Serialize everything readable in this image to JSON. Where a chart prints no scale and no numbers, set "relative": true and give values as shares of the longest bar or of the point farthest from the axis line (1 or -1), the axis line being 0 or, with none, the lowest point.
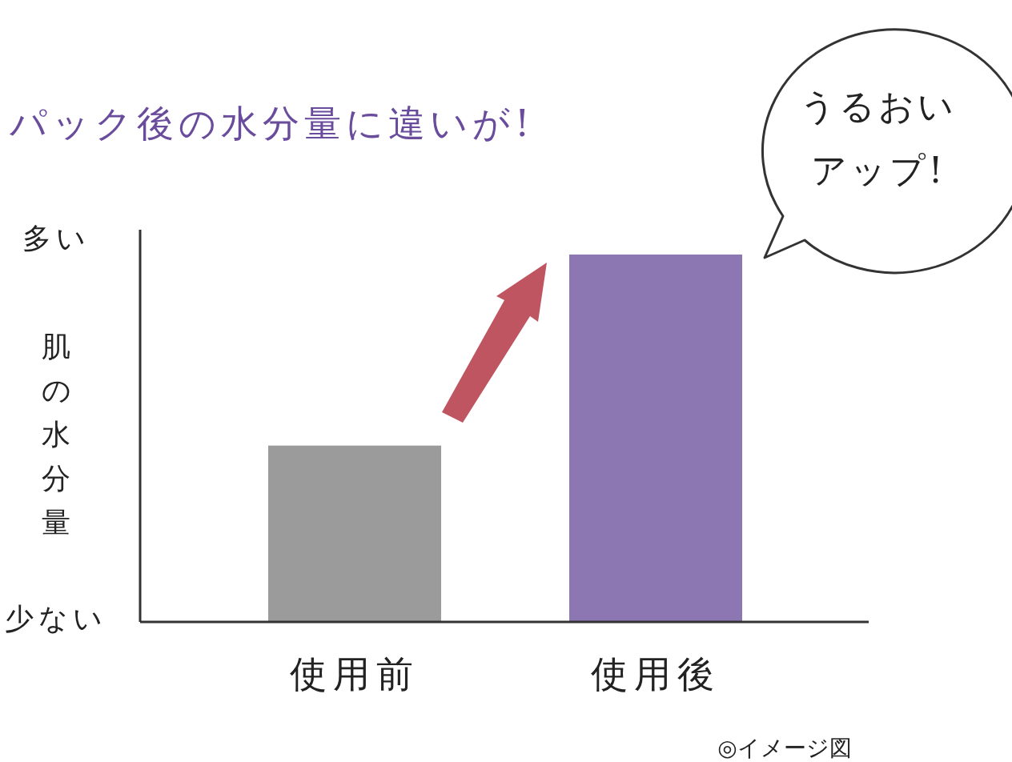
{
  "chart_data": {
    "type": "bar",
    "relative": true,
    "title": "パック後の水分量に違いが!",
    "ylabel": "肌の水分量",
    "categories": [
      "使用前",
      "使用後"
    ],
    "values": [
      0.48,
      1
    ],
    "colors": [
      "#9b9b9b",
      "#8d77b3"
    ],
    "annotations": [
      "多い",
      "少ない",
      "うるおい",
      "アップ!",
      "◎イメージ図"
    ]
  }
}
